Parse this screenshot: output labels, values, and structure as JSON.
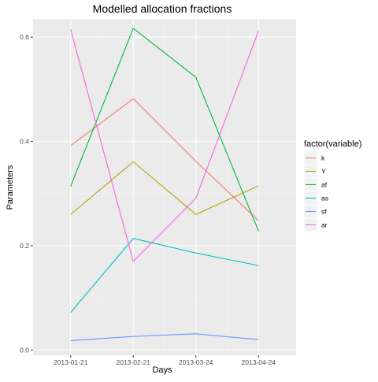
{
  "chart_data": {
    "type": "line",
    "title": "Modelled allocation fractions",
    "xlabel": "Days",
    "ylabel": "Parameters",
    "x": [
      "2013-01-21",
      "2013-02-21",
      "2013-03-24",
      "2013-04-24"
    ],
    "ylim": [
      -0.01,
      0.635
    ],
    "yticks": [
      0.0,
      0.2,
      0.4,
      0.6
    ],
    "ytick_labels": [
      "0.0",
      "0.2",
      "0.4",
      "0.6"
    ],
    "grid": true,
    "legend_title": "factor(variable)",
    "legend_position": "right",
    "series": [
      {
        "name": "k",
        "color": "#F8766D",
        "values": [
          0.392,
          0.482,
          0.362,
          0.248
        ]
      },
      {
        "name": "Y",
        "color": "#B79F00",
        "values": [
          0.26,
          0.361,
          0.26,
          0.315
        ]
      },
      {
        "name": "af",
        "color": "#00BA38",
        "values": [
          0.314,
          0.617,
          0.523,
          0.228
        ]
      },
      {
        "name": "as",
        "color": "#00BFC4",
        "values": [
          0.072,
          0.214,
          0.186,
          0.162
        ]
      },
      {
        "name": "sf",
        "color": "#619CFF",
        "values": [
          0.018,
          0.026,
          0.031,
          0.02
        ]
      },
      {
        "name": "ar",
        "color": "#F564E3",
        "values": [
          0.615,
          0.17,
          0.291,
          0.612
        ]
      }
    ]
  }
}
